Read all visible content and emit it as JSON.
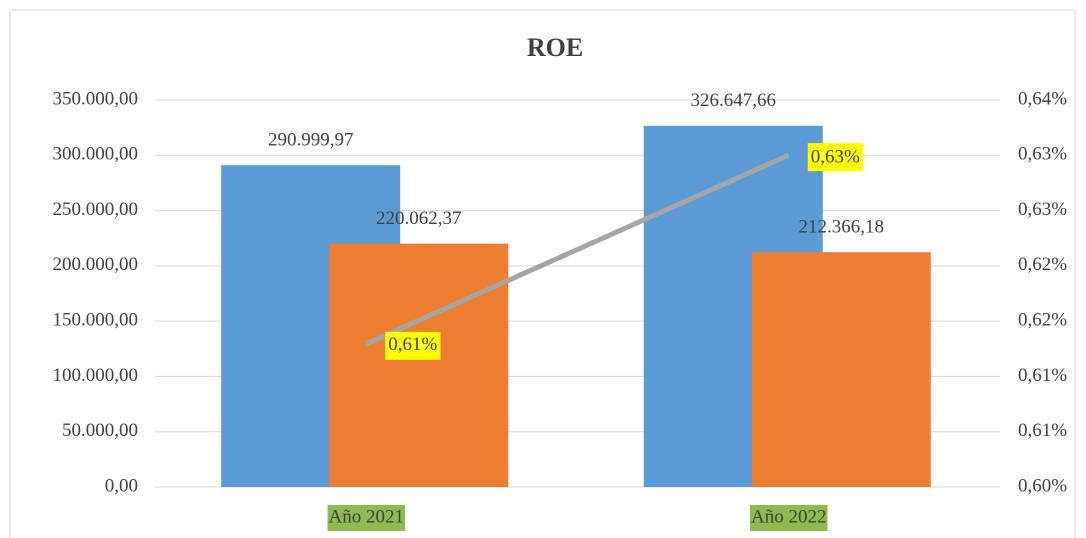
{
  "chart_data": {
    "type": "bar",
    "title": "ROE",
    "categories": [
      "Año 2021",
      "Año 2022"
    ],
    "series": [
      {
        "color": "#5b9bd5",
        "values": [
          290999.97,
          326647.66
        ],
        "value_labels": [
          "290.999,97",
          "326.647,66"
        ]
      },
      {
        "color": "#ed7d31",
        "values": [
          220062.37,
          212366.18
        ],
        "value_labels": [
          "220.062,37",
          "212.366,18"
        ]
      },
      {
        "type": "line",
        "axis": "y2",
        "color": "#a5a5a5",
        "values": [
          0.6148,
          0.6343
        ],
        "value_labels": [
          "0,61%",
          "0,63%"
        ]
      }
    ],
    "ylim": [
      0,
      350000
    ],
    "yticks": [
      {
        "value": 0,
        "label": "0,00"
      },
      {
        "value": 50000,
        "label": "50.000,00"
      },
      {
        "value": 100000,
        "label": "100.000,00"
      },
      {
        "value": 150000,
        "label": "150.000,00"
      },
      {
        "value": 200000,
        "label": "200.000,00"
      },
      {
        "value": 250000,
        "label": "250.000,00"
      },
      {
        "value": 300000,
        "label": "300.000,00"
      },
      {
        "value": 350000,
        "label": "350.000,00"
      }
    ],
    "y2lim": [
      0.6,
      0.64
    ],
    "y2ticks": [
      {
        "value": 0.6,
        "label": "0,60%"
      },
      {
        "value": 0.60571,
        "label": "0,61%"
      },
      {
        "value": 0.61143,
        "label": "0,61%"
      },
      {
        "value": 0.61714,
        "label": "0,62%"
      },
      {
        "value": 0.62286,
        "label": "0,62%"
      },
      {
        "value": 0.62857,
        "label": "0,63%"
      },
      {
        "value": 0.63429,
        "label": "0,63%"
      },
      {
        "value": 0.64,
        "label": "0,64%"
      }
    ],
    "grid": true
  }
}
